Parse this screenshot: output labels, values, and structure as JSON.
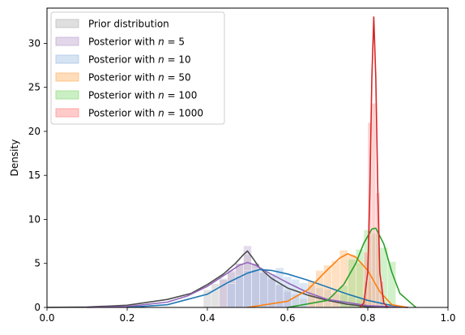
{
  "chart_data": {
    "type": "histogram-density",
    "title": "",
    "xlabel": "",
    "ylabel": "Density",
    "xlim": [
      0.0,
      1.0
    ],
    "ylim": [
      0,
      34
    ],
    "xticks": [
      0.0,
      0.2,
      0.4,
      0.6,
      0.8,
      1.0
    ],
    "xtick_labels": [
      "0.0",
      "0.2",
      "0.4",
      "0.6",
      "0.8",
      "1.0"
    ],
    "yticks": [
      0,
      5,
      10,
      15,
      20,
      25,
      30
    ],
    "ytick_labels": [
      "0",
      "5",
      "10",
      "15",
      "20",
      "25",
      "30"
    ],
    "legend_position": "upper-left",
    "series": [
      {
        "name": "Prior distribution",
        "color": "#4d4d4d",
        "hist_color": "#bfbfbf",
        "kde": {
          "x": [
            0.0,
            0.1,
            0.2,
            0.3,
            0.36,
            0.4,
            0.44,
            0.47,
            0.49,
            0.5,
            0.51,
            0.53,
            0.56,
            0.6,
            0.65,
            0.7,
            0.75,
            0.8,
            0.85
          ],
          "y": [
            0.0,
            0.05,
            0.25,
            0.9,
            1.6,
            2.6,
            3.8,
            5.0,
            6.0,
            6.4,
            5.8,
            4.5,
            3.3,
            2.2,
            1.4,
            0.8,
            0.35,
            0.1,
            0.0
          ]
        },
        "bins": {
          "x": [
            0.4,
            0.42,
            0.44,
            0.46,
            0.48,
            0.5,
            0.52,
            0.54,
            0.56,
            0.58,
            0.6,
            0.62,
            0.64
          ],
          "height": [
            2.0,
            2.7,
            3.3,
            4.0,
            5.0,
            6.0,
            5.0,
            4.0,
            3.2,
            2.5,
            2.0,
            1.5,
            1.0
          ]
        }
      },
      {
        "name": "Posterior with n = 5",
        "label_prefix": "Posterior with ",
        "label_math": "n = 5",
        "color": "#9467bd",
        "hist_color": "#c5b0d5",
        "kde": {
          "x": [
            0.1,
            0.2,
            0.3,
            0.35,
            0.4,
            0.45,
            0.48,
            0.5,
            0.52,
            0.55,
            0.6,
            0.65,
            0.7,
            0.8,
            0.9
          ],
          "y": [
            0.0,
            0.1,
            0.6,
            1.3,
            2.4,
            3.9,
            4.8,
            5.1,
            4.8,
            4.0,
            2.8,
            1.7,
            0.9,
            0.2,
            0.0
          ]
        },
        "bins": {
          "x": [
            0.44,
            0.46,
            0.48,
            0.5,
            0.52,
            0.54,
            0.56,
            0.58,
            0.6
          ],
          "height": [
            3.2,
            4.2,
            5.0,
            7.0,
            5.0,
            4.2,
            3.5,
            2.6,
            1.8
          ]
        }
      },
      {
        "name": "Posterior with n = 10",
        "label_prefix": "Posterior with ",
        "label_math": "n = 10",
        "color": "#1f77b4",
        "hist_color": "#aec7e8",
        "kde": {
          "x": [
            0.2,
            0.3,
            0.4,
            0.45,
            0.5,
            0.53,
            0.56,
            0.6,
            0.65,
            0.7,
            0.75,
            0.8,
            0.85,
            0.9
          ],
          "y": [
            0.0,
            0.3,
            1.5,
            2.8,
            3.9,
            4.3,
            4.2,
            3.8,
            3.1,
            2.3,
            1.5,
            0.8,
            0.3,
            0.0
          ]
        },
        "bins": {
          "x": [
            0.46,
            0.48,
            0.5,
            0.52,
            0.54,
            0.56,
            0.58,
            0.6,
            0.62,
            0.64,
            0.66,
            0.68,
            0.7,
            0.72,
            0.74,
            0.76,
            0.78
          ],
          "height": [
            2.7,
            3.6,
            4.2,
            4.4,
            4.0,
            3.8,
            4.5,
            3.5,
            3.2,
            2.8,
            2.5,
            2.2,
            2.0,
            1.6,
            1.4,
            1.2,
            0.9
          ]
        }
      },
      {
        "name": "Posterior with n = 50",
        "label_prefix": "Posterior with ",
        "label_math": "n = 50",
        "color": "#ff7f0e",
        "hist_color": "#ffbb78",
        "kde": {
          "x": [
            0.5,
            0.6,
            0.65,
            0.7,
            0.73,
            0.75,
            0.77,
            0.8,
            0.83,
            0.86,
            0.9
          ],
          "y": [
            0.0,
            0.7,
            2.0,
            4.3,
            5.6,
            6.1,
            5.7,
            4.2,
            1.8,
            0.3,
            0.0
          ]
        },
        "bins": {
          "x": [
            0.66,
            0.68,
            0.7,
            0.72,
            0.74,
            0.76,
            0.78,
            0.8
          ],
          "height": [
            3.0,
            4.2,
            4.8,
            5.3,
            6.5,
            6.0,
            5.0,
            3.0
          ]
        }
      },
      {
        "name": "Posterior with n = 100",
        "label_prefix": "Posterior with ",
        "label_math": "n = 100",
        "color": "#2ca02c",
        "hist_color": "#98df8a",
        "kde": {
          "x": [
            0.6,
            0.7,
            0.74,
            0.77,
            0.79,
            0.81,
            0.82,
            0.84,
            0.86,
            0.88,
            0.92
          ],
          "y": [
            0.0,
            0.8,
            2.6,
            5.0,
            7.3,
            8.9,
            9.0,
            7.2,
            4.0,
            1.6,
            0.0
          ]
        },
        "bins": {
          "x": [
            0.74,
            0.76,
            0.78,
            0.8,
            0.82,
            0.84,
            0.86
          ],
          "height": [
            2.5,
            5.5,
            6.6,
            8.8,
            8.4,
            6.8,
            5.2
          ]
        }
      },
      {
        "name": "Posterior with n = 1000",
        "label_prefix": "Posterior with ",
        "label_math": "n = 1000",
        "color": "#d62728",
        "hist_color": "#ff9896",
        "kde": {
          "x": [
            0.78,
            0.79,
            0.8,
            0.805,
            0.81,
            0.815,
            0.82,
            0.825,
            0.83,
            0.84,
            0.85
          ],
          "y": [
            0.0,
            0.5,
            4.0,
            13.0,
            26.0,
            33.0,
            26.0,
            13.0,
            4.0,
            0.5,
            0.0
          ]
        },
        "bins": {
          "x": [
            0.795,
            0.805,
            0.815,
            0.825,
            0.835
          ],
          "height": [
            6.3,
            21.0,
            23.2,
            13.0,
            3.0
          ]
        }
      }
    ]
  }
}
